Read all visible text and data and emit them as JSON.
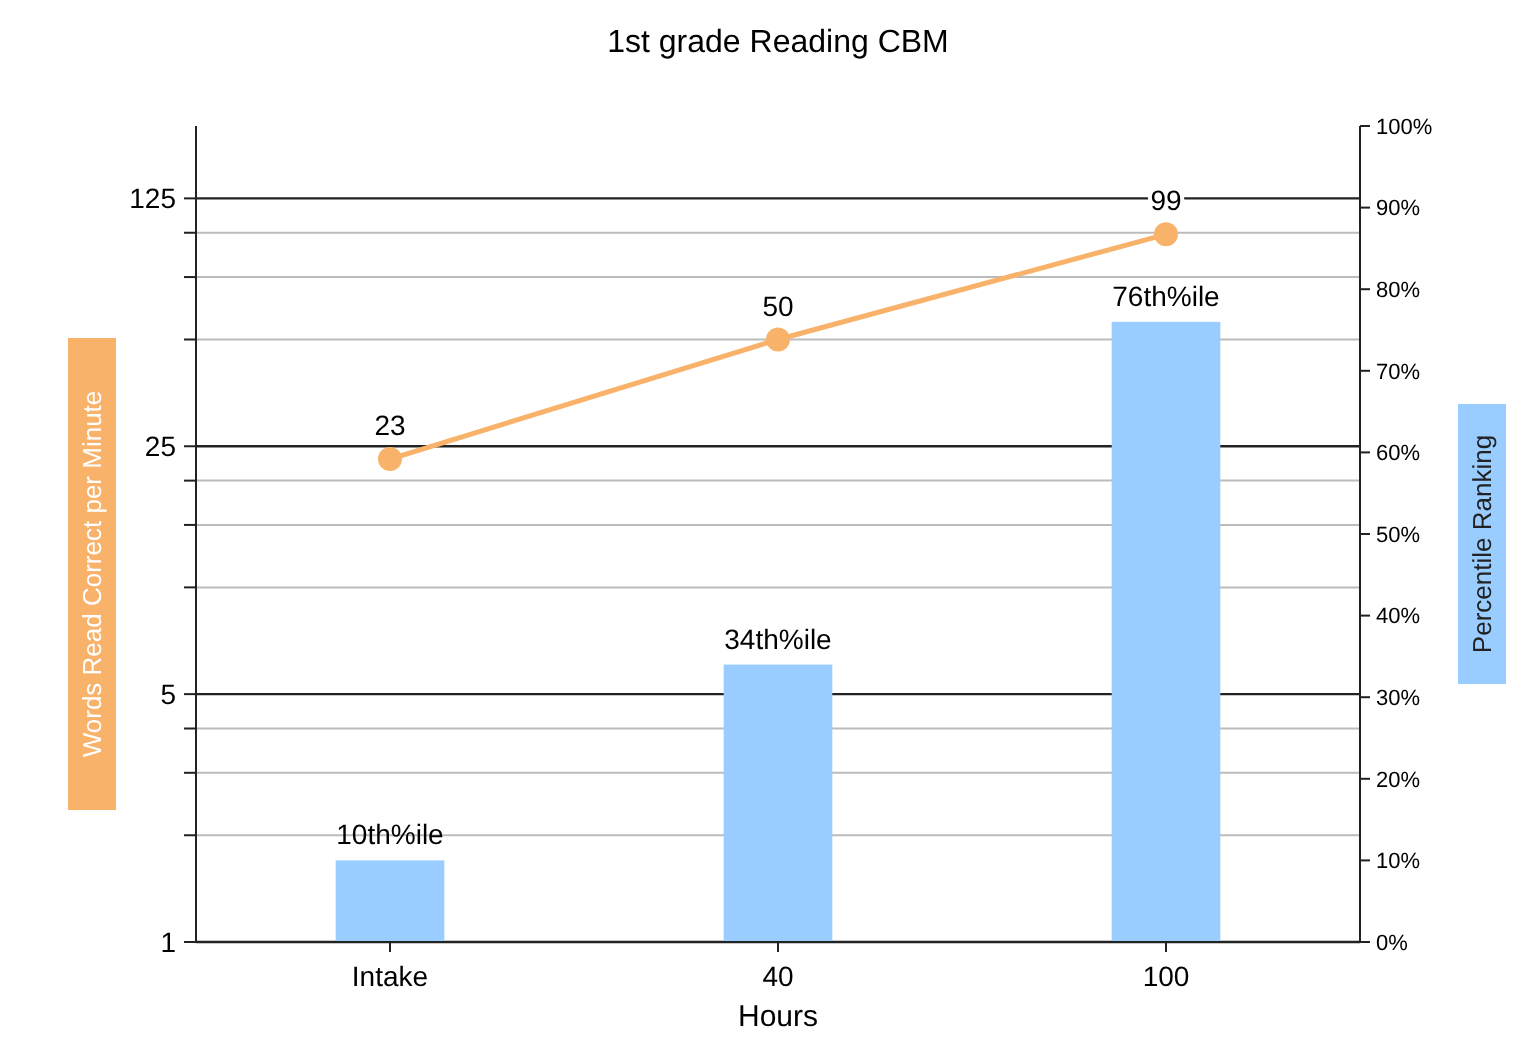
{
  "chart_data": {
    "type": "bar",
    "title": "1st grade Reading CBM",
    "xlabel": "Hours",
    "ylabel": "Words Read Correct per Minute",
    "y2label": "Percentile Ranking",
    "categories": [
      "Intake",
      "40",
      "100"
    ],
    "series": [
      {
        "axis": "y2",
        "color": "#99ccff",
        "values": [
          10,
          34,
          76
        ],
        "value_labels": [
          "10th%ile",
          "34th%ile",
          "76th%ile"
        ]
      },
      {
        "type": "line",
        "axis": "y",
        "color": "#f8b26a",
        "marker": "circle",
        "values": [
          23,
          50,
          99
        ],
        "value_labels": [
          "23",
          "50",
          "99"
        ]
      }
    ],
    "log": "y",
    "ylim": [
      1,
      200
    ],
    "yticks": [
      1,
      {
        "value": 2,
        "label": null
      },
      {
        "value": 3,
        "label": null
      },
      {
        "value": 4,
        "label": null
      },
      5,
      {
        "value": 10,
        "label": null
      },
      {
        "value": 15,
        "label": null
      },
      {
        "value": 20,
        "label": null
      },
      25,
      {
        "value": 50,
        "label": null
      },
      {
        "value": 75,
        "label": null
      },
      {
        "value": 100,
        "label": null
      },
      125
    ],
    "y2lim": [
      0,
      100
    ],
    "y2ticks": [
      {
        "value": 0,
        "label": "0%"
      },
      {
        "value": 10,
        "label": "10%"
      },
      {
        "value": 20,
        "label": "20%"
      },
      {
        "value": 30,
        "label": "30%"
      },
      {
        "value": 40,
        "label": "40%"
      },
      {
        "value": 50,
        "label": "50%"
      },
      {
        "value": 60,
        "label": "60%"
      },
      {
        "value": 70,
        "label": "70%"
      },
      {
        "value": 80,
        "label": "80%"
      },
      {
        "value": 90,
        "label": "90%"
      },
      {
        "value": 100,
        "label": "100%"
      }
    ],
    "grid": "y"
  }
}
